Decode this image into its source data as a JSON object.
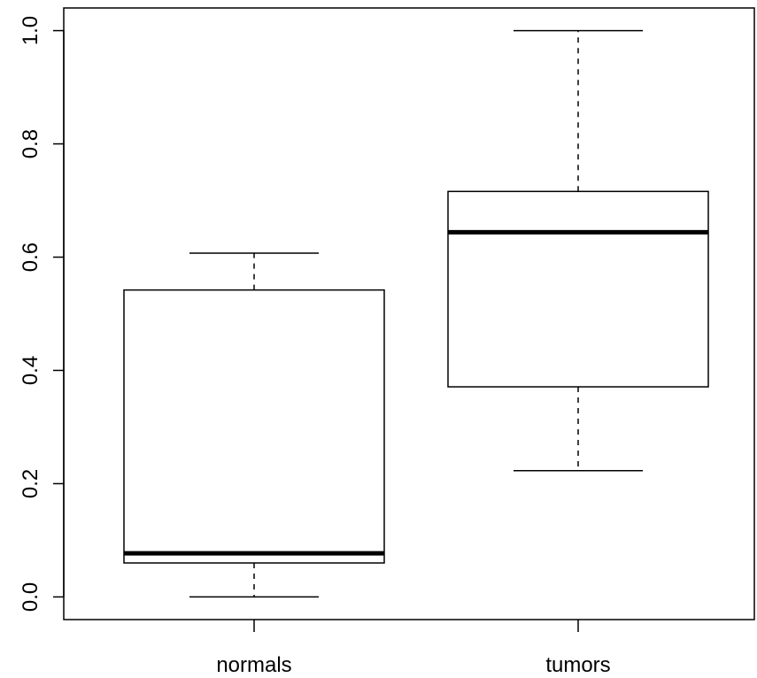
{
  "chart_data": {
    "type": "box",
    "categories": [
      "normals",
      "tumors"
    ],
    "boxes": [
      {
        "category": "normals",
        "whisker_low": 0.0,
        "q1": 0.06,
        "median": 0.077,
        "q3": 0.542,
        "whisker_high": 0.607
      },
      {
        "category": "tumors",
        "whisker_low": 0.223,
        "q1": 0.371,
        "median": 0.644,
        "q3": 0.716,
        "whisker_high": 1.0
      }
    ],
    "yticks": [
      "0.0",
      "0.2",
      "0.4",
      "0.6",
      "0.8",
      "1.0"
    ],
    "ylim": [
      -0.04,
      1.04
    ],
    "xlabel": "",
    "ylabel": "",
    "title": "",
    "grid": false
  }
}
